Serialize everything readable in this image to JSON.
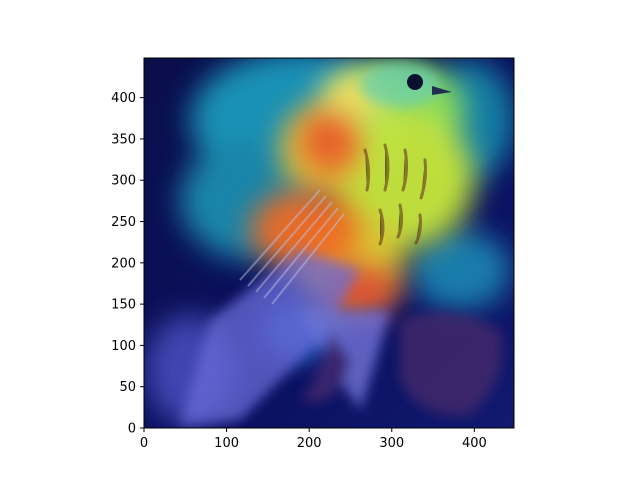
{
  "chart_data": {
    "type": "heatmap",
    "description_free": true,
    "image_extent": {
      "x": [
        0,
        448
      ],
      "y": [
        448,
        0
      ]
    },
    "x_ticks": [
      0,
      100,
      200,
      300,
      400
    ],
    "y_ticks": [
      0,
      50,
      100,
      150,
      200,
      250,
      300,
      350,
      400
    ],
    "x_tick_labels": [
      "0",
      "100",
      "200",
      "300",
      "400"
    ],
    "y_tick_labels": [
      "0",
      "50",
      "100",
      "150",
      "200",
      "250",
      "300",
      "350",
      "400"
    ],
    "colormap": "jet",
    "grid": false
  }
}
